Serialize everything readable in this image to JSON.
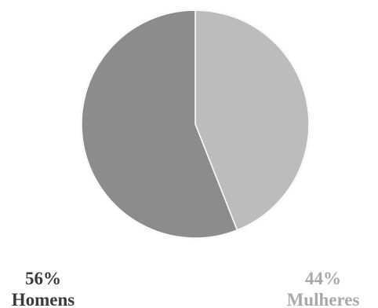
{
  "chart_data": {
    "type": "pie",
    "start_angle_deg": 0,
    "direction": "clockwise",
    "slices": [
      {
        "label": "Mulheres",
        "value": 44,
        "percent_label": "44%",
        "color": "#bcbcbc",
        "label_color": "#a9a9a9"
      },
      {
        "label": "Homens",
        "value": 56,
        "percent_label": "56%",
        "color": "#8c8c8c",
        "label_color": "#3a3a3a"
      }
    ],
    "legend": "none"
  }
}
